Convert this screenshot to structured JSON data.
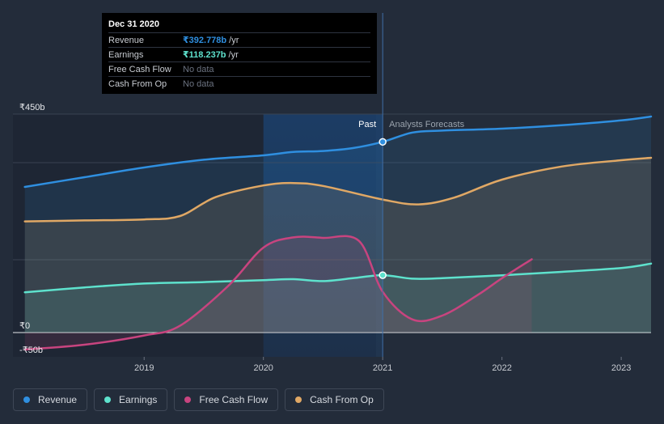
{
  "chart_data": {
    "type": "line",
    "currency": "₹",
    "y_tick_labels": [
      "₹450b",
      "₹0",
      "-₹50b"
    ],
    "x_tick_labels": [
      "2019",
      "2020",
      "2021",
      "2022",
      "2023"
    ],
    "x_ticks": [
      2019,
      2020,
      2021,
      2022,
      2023
    ],
    "xlim": [
      2017.9,
      2023.25
    ],
    "ylim": [
      -50,
      450
    ],
    "past_label": "Past",
    "forecast_label": "Analysts Forecasts",
    "divider_x": 2021.0,
    "highlight_range": [
      2020.0,
      2021.0
    ],
    "series": [
      {
        "name": "Revenue",
        "color": "#2f8fe0",
        "fill": true,
        "x": [
          2018.0,
          2018.5,
          2019.0,
          2019.5,
          2020.0,
          2020.25,
          2020.5,
          2020.75,
          2021.0,
          2021.25,
          2021.5,
          2022.0,
          2022.5,
          2023.0,
          2023.25
        ],
        "y": [
          300,
          320,
          340,
          356,
          365,
          372,
          374,
          380,
          392.8,
          412,
          416,
          420,
          427,
          437,
          445
        ]
      },
      {
        "name": "Earnings",
        "color": "#5ee2cd",
        "fill": true,
        "x": [
          2018.0,
          2018.5,
          2019.0,
          2019.5,
          2020.0,
          2020.25,
          2020.5,
          2020.75,
          2021.0,
          2021.25,
          2021.5,
          2022.0,
          2022.5,
          2023.0,
          2023.25
        ],
        "y": [
          83,
          93,
          101,
          104,
          108,
          110,
          106,
          112,
          118.2,
          111,
          112,
          118,
          125,
          133,
          142
        ]
      },
      {
        "name": "Free Cash Flow",
        "color": "#c8447f",
        "fill": true,
        "x": [
          2018.0,
          2018.5,
          2019.0,
          2019.3,
          2019.7,
          2020.0,
          2020.25,
          2020.5,
          2020.8,
          2021.0,
          2021.25,
          2021.5,
          2021.8,
          2022.0,
          2022.25
        ],
        "y": [
          -35,
          -25,
          -6,
          14,
          95,
          175,
          196,
          195,
          189,
          84,
          27,
          35,
          78,
          112,
          151
        ]
      },
      {
        "name": "Cash From Op",
        "color": "#e0a865",
        "fill": true,
        "x": [
          2018.0,
          2018.5,
          2019.0,
          2019.3,
          2019.6,
          2020.0,
          2020.25,
          2020.5,
          2021.0,
          2021.3,
          2021.6,
          2022.0,
          2022.5,
          2023.0,
          2023.25
        ],
        "y": [
          229,
          231,
          233,
          240,
          279,
          303,
          308,
          302,
          274,
          264,
          278,
          315,
          342,
          355,
          360
        ]
      }
    ],
    "markers": [
      {
        "series": "Revenue",
        "x": 2021.0,
        "y": 392.8
      },
      {
        "series": "Earnings",
        "x": 2021.0,
        "y": 118.2
      }
    ]
  },
  "tooltip": {
    "date": "Dec 31 2020",
    "rows": [
      {
        "name": "Revenue",
        "value": "₹392.778b",
        "unit": "/yr",
        "color": "#2f8fe0"
      },
      {
        "name": "Earnings",
        "value": "₹118.237b",
        "unit": "/yr",
        "color": "#5ee2cd"
      },
      {
        "name": "Free Cash Flow",
        "value": "No data",
        "unit": "",
        "color": ""
      },
      {
        "name": "Cash From Op",
        "value": "No data",
        "unit": "",
        "color": ""
      }
    ]
  },
  "legend": [
    {
      "label": "Revenue",
      "color": "#2f8fe0"
    },
    {
      "label": "Earnings",
      "color": "#5ee2cd"
    },
    {
      "label": "Free Cash Flow",
      "color": "#c8447f"
    },
    {
      "label": "Cash From Op",
      "color": "#e0a865"
    }
  ]
}
